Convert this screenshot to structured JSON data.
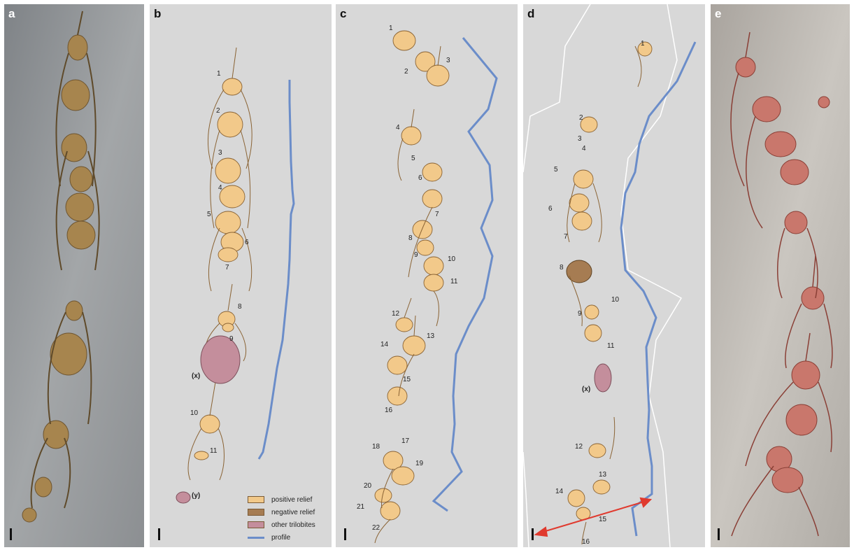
{
  "panels": [
    {
      "label": "a"
    },
    {
      "label": "b"
    },
    {
      "label": "c"
    },
    {
      "label": "d"
    },
    {
      "label": "e"
    }
  ],
  "panel_b": {
    "numbers": [
      "1",
      "2",
      "3",
      "4",
      "5",
      "6",
      "7",
      "8",
      "9",
      "10",
      "11"
    ],
    "tags": [
      "(x)",
      "(y)"
    ]
  },
  "panel_c": {
    "numbers": [
      "1",
      "2",
      "3",
      "4",
      "5",
      "6",
      "7",
      "8",
      "9",
      "10",
      "11",
      "12",
      "13",
      "14",
      "15",
      "16",
      "17",
      "18",
      "19",
      "20",
      "21",
      "22"
    ]
  },
  "panel_d": {
    "numbers": [
      "1",
      "2",
      "3",
      "4",
      "5",
      "6",
      "7",
      "8",
      "9",
      "10",
      "11",
      "12",
      "13",
      "14",
      "15",
      "16"
    ],
    "tags": [
      "(x)"
    ]
  },
  "legend": {
    "items": [
      {
        "label": "positive relief",
        "color": "#f2c98a"
      },
      {
        "label": "negative relief",
        "color": "#a67c52"
      },
      {
        "label": "other trilobites",
        "color": "#c48e9c"
      },
      {
        "label": "profile",
        "color": "#6b8dc9"
      }
    ]
  },
  "colors": {
    "panel_bg": "#d8d8d8",
    "positive": "#f2c98a",
    "negative": "#a67c52",
    "other": "#c48e9c",
    "profile": "#6b8dc9",
    "arrow": "#e03a2e"
  }
}
